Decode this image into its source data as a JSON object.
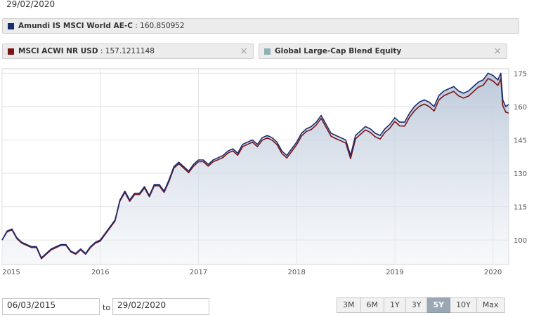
{
  "header": {
    "date": "29/02/2020"
  },
  "legend": [
    {
      "label": "Amundi IS MSCI World AE-C",
      "value": " : 160.850952",
      "color": "#1a2c73",
      "closable": false
    },
    {
      "label": "MSCI ACWI NR USD",
      "value": " : 157.1211148",
      "color": "#7a1416",
      "closable": true
    },
    {
      "label": "Global Large-Cap Blend Equity",
      "value": "",
      "color": "#8fb0b8",
      "closable": true
    }
  ],
  "close_glyph": "×",
  "controls": {
    "from_date": "06/03/2015",
    "to_label": "to",
    "to_date": "29/02/2020",
    "ranges": [
      "3M",
      "6M",
      "1Y",
      "3Y",
      "5Y",
      "10Y",
      "Max"
    ],
    "active_range": "5Y"
  },
  "chart_data": {
    "type": "line",
    "title": "",
    "xlabel": "",
    "ylabel": "",
    "x_ticks": [
      2015,
      2016,
      2017,
      2018,
      2019,
      2020
    ],
    "x_tick_labels": [
      "2015",
      "2016",
      "2017",
      "2018",
      "2019",
      "2020"
    ],
    "y_ticks": [
      100,
      115,
      130,
      145,
      160,
      175
    ],
    "y_tick_labels": [
      "100",
      "115",
      "130",
      "145",
      "160",
      "175"
    ],
    "xlim": [
      2015.0,
      2020.16
    ],
    "ylim": [
      89,
      177
    ],
    "grid": true,
    "area_fill_series": "Amundi IS MSCI World AE-C",
    "x": [
      2015.0,
      2015.05,
      2015.1,
      2015.15,
      2015.2,
      2015.25,
      2015.3,
      2015.35,
      2015.4,
      2015.45,
      2015.5,
      2015.55,
      2015.6,
      2015.65,
      2015.7,
      2015.75,
      2015.8,
      2015.85,
      2015.9,
      2015.95,
      2016.0,
      2016.05,
      2016.1,
      2016.15,
      2016.2,
      2016.25,
      2016.3,
      2016.35,
      2016.4,
      2016.45,
      2016.5,
      2016.55,
      2016.6,
      2016.65,
      2016.7,
      2016.75,
      2016.8,
      2016.85,
      2016.9,
      2016.95,
      2017.0,
      2017.05,
      2017.1,
      2017.15,
      2017.2,
      2017.25,
      2017.3,
      2017.35,
      2017.4,
      2017.45,
      2017.5,
      2017.55,
      2017.6,
      2017.65,
      2017.7,
      2017.75,
      2017.8,
      2017.85,
      2017.9,
      2017.95,
      2018.0,
      2018.05,
      2018.1,
      2018.15,
      2018.2,
      2018.25,
      2018.3,
      2018.35,
      2018.4,
      2018.45,
      2018.5,
      2018.55,
      2018.6,
      2018.65,
      2018.7,
      2018.75,
      2018.8,
      2018.85,
      2018.9,
      2018.95,
      2019.0,
      2019.05,
      2019.1,
      2019.15,
      2019.2,
      2019.25,
      2019.3,
      2019.35,
      2019.4,
      2019.45,
      2019.5,
      2019.55,
      2019.6,
      2019.65,
      2019.7,
      2019.75,
      2019.8,
      2019.85,
      2019.9,
      2019.95,
      2020.0,
      2020.05,
      2020.08,
      2020.1,
      2020.13,
      2020.16
    ],
    "series": [
      {
        "name": "Amundi IS MSCI World AE-C",
        "color": "#1a2c73",
        "values": [
          100,
          104,
          105,
          101,
          99,
          98,
          97,
          97,
          92,
          94,
          96,
          97,
          98,
          98,
          95,
          94,
          96,
          94,
          97,
          99,
          100,
          103,
          106,
          109,
          118,
          122,
          118,
          121,
          121,
          124,
          120,
          125,
          125,
          122,
          127,
          133,
          135,
          133,
          131,
          134,
          136,
          136,
          134,
          136,
          137,
          138,
          140,
          141,
          139,
          143,
          144,
          145,
          143,
          146,
          147,
          146,
          144,
          140,
          138,
          141,
          144,
          148,
          150,
          151,
          153,
          156,
          152,
          148,
          147,
          146,
          145,
          138,
          147,
          149,
          151,
          150,
          148,
          147,
          150,
          152,
          155,
          153,
          153,
          157,
          160,
          162,
          163,
          162,
          160,
          165,
          167,
          168,
          169,
          167,
          166,
          167,
          169,
          171,
          172,
          175,
          174,
          172,
          175,
          163,
          160,
          161
        ]
      },
      {
        "name": "MSCI ACWI NR USD",
        "color": "#7a1416",
        "values": [
          100,
          103.6,
          104.6,
          100.6,
          98.6,
          97.6,
          96.6,
          96.6,
          91.6,
          93.6,
          95.6,
          96.6,
          97.6,
          97.6,
          94.6,
          93.6,
          95.6,
          93.6,
          96.6,
          98.6,
          99.5,
          102.5,
          105.5,
          108.5,
          117.5,
          121.4,
          117.4,
          120.4,
          120.4,
          123.4,
          119.4,
          124.4,
          124.4,
          121.4,
          126.3,
          132.3,
          134.3,
          132.3,
          130.3,
          133.2,
          135.2,
          135.2,
          133.2,
          135.2,
          136.1,
          137.1,
          139.1,
          140.1,
          138.1,
          142,
          143,
          144,
          142,
          144.9,
          145.9,
          144.9,
          142.9,
          138.9,
          136.9,
          139.8,
          142.8,
          146.8,
          148.8,
          149.7,
          151.7,
          154.7,
          150.7,
          146.7,
          145.6,
          144.6,
          143.6,
          136.6,
          145.5,
          147.5,
          149.5,
          148.4,
          146.4,
          145.4,
          148.4,
          150.3,
          153.3,
          151.3,
          151.2,
          155.2,
          158.1,
          160.1,
          161.1,
          160,
          158,
          163,
          164.9,
          165.9,
          166.8,
          164.8,
          163.8,
          164.7,
          166.7,
          168.7,
          169.6,
          172.6,
          171.5,
          169.5,
          172.5,
          160.4,
          157.5,
          157.1
        ]
      }
    ]
  }
}
